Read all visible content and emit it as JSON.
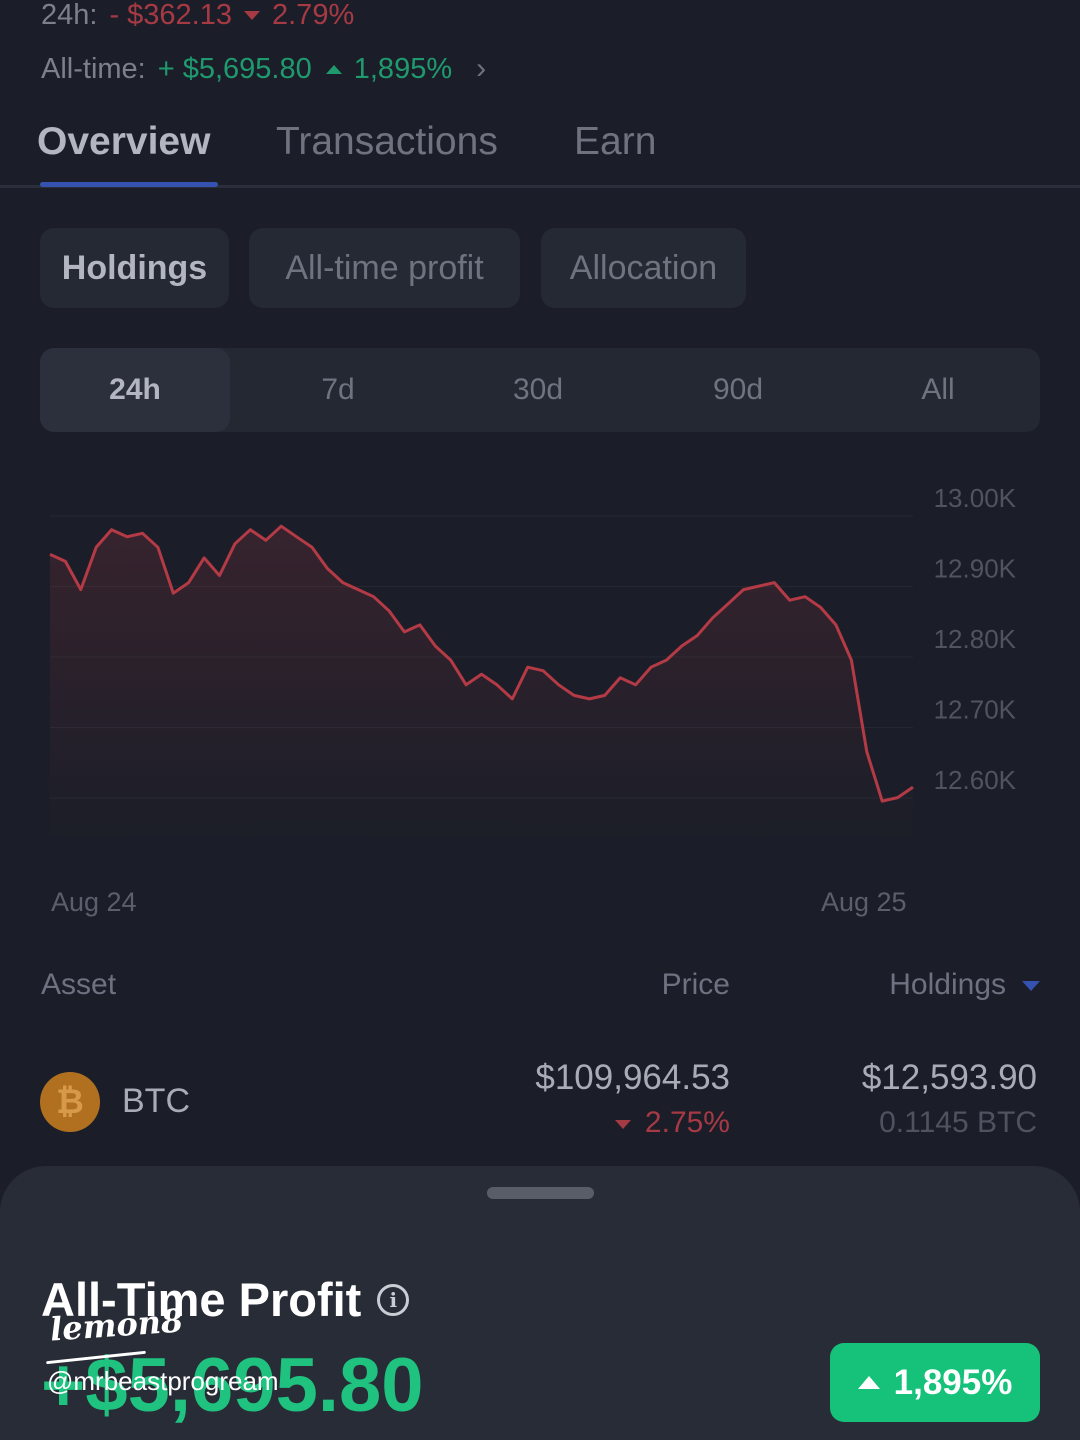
{
  "summary": {
    "day_label": "24h:",
    "day_change": "- $362.13",
    "day_pct": "2.79%",
    "alltime_label": "All-time:",
    "alltime_change": "+ $5,695.80",
    "alltime_pct": "1,895%"
  },
  "tabs": [
    "Overview",
    "Transactions",
    "Earn"
  ],
  "chips": [
    "Holdings",
    "All-time profit",
    "Allocation"
  ],
  "periods": [
    "24h",
    "7d",
    "30d",
    "90d",
    "All"
  ],
  "chart_data": {
    "type": "area",
    "x_labels": [
      "Aug 24",
      "Aug 25"
    ],
    "y_ticks": [
      "13.00K",
      "12.90K",
      "12.80K",
      "12.70K",
      "12.60K"
    ],
    "ylim": [
      12550,
      13020
    ],
    "line_color": "#b43a46",
    "values": [
      12920,
      12910,
      12870,
      12930,
      12955,
      12945,
      12950,
      12930,
      12865,
      12880,
      12915,
      12890,
      12935,
      12955,
      12940,
      12960,
      12945,
      12930,
      12900,
      12880,
      12870,
      12860,
      12840,
      12810,
      12820,
      12790,
      12770,
      12735,
      12750,
      12735,
      12715,
      12760,
      12755,
      12735,
      12720,
      12715,
      12720,
      12745,
      12735,
      12760,
      12770,
      12790,
      12805,
      12830,
      12850,
      12870,
      12875,
      12880,
      12855,
      12860,
      12845,
      12820,
      12770,
      12640,
      12570,
      12575,
      12590
    ]
  },
  "table": {
    "col_asset": "Asset",
    "col_price": "Price",
    "col_holdings": "Holdings",
    "rows": [
      {
        "symbol": "BTC",
        "coin_glyph": "₿",
        "price": "$109,964.53",
        "change": "2.75%",
        "holdings": "$12,593.90",
        "amount": "0.1145 BTC"
      }
    ]
  },
  "sheet": {
    "title": "All-Time Profit",
    "value": "+$5,695.80",
    "pct": "1,895%"
  },
  "watermark": {
    "logo": "lemon8",
    "handle": "@mrbeastprogream"
  },
  "colors": {
    "background": "#1b1e28",
    "negative": "#a63a44",
    "positive": "#1f9a6e",
    "accent": "#3552b0",
    "badge": "#16c27a"
  }
}
